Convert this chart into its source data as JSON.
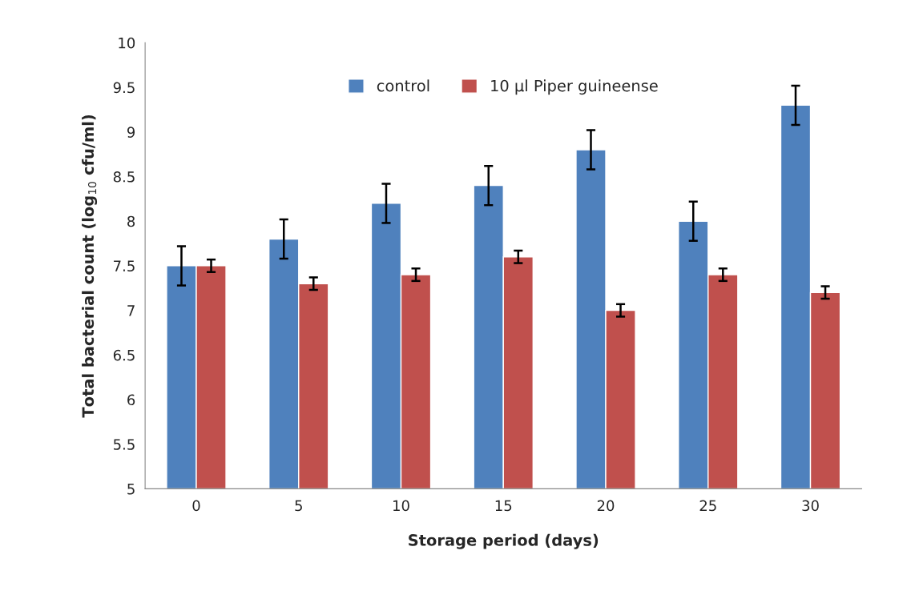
{
  "chart_data": {
    "type": "bar",
    "xlabel": "Storage period (days)",
    "ylabel": "Total bacterial count (log$_{10}$ cfu/ml)",
    "categories": [
      "0",
      "5",
      "10",
      "15",
      "20",
      "25",
      "30"
    ],
    "series": [
      {
        "name": "control",
        "color": "#4f81bd",
        "values": [
          7.5,
          7.8,
          8.2,
          8.4,
          8.8,
          8.0,
          9.3
        ],
        "errors": [
          0.22,
          0.22,
          0.22,
          0.22,
          0.22,
          0.22,
          0.22
        ]
      },
      {
        "name": "10 µl Piper guineense",
        "color": "#c0504d",
        "values": [
          7.5,
          7.3,
          7.4,
          7.6,
          7.0,
          7.4,
          7.2
        ],
        "errors": [
          0.07,
          0.07,
          0.07,
          0.07,
          0.07,
          0.07,
          0.07
        ]
      }
    ],
    "ylim": [
      5,
      10
    ],
    "yticks": [
      5,
      5.5,
      6,
      6.5,
      7,
      7.5,
      8,
      8.5,
      9,
      9.5,
      10
    ],
    "grid": false,
    "legend": "top"
  }
}
